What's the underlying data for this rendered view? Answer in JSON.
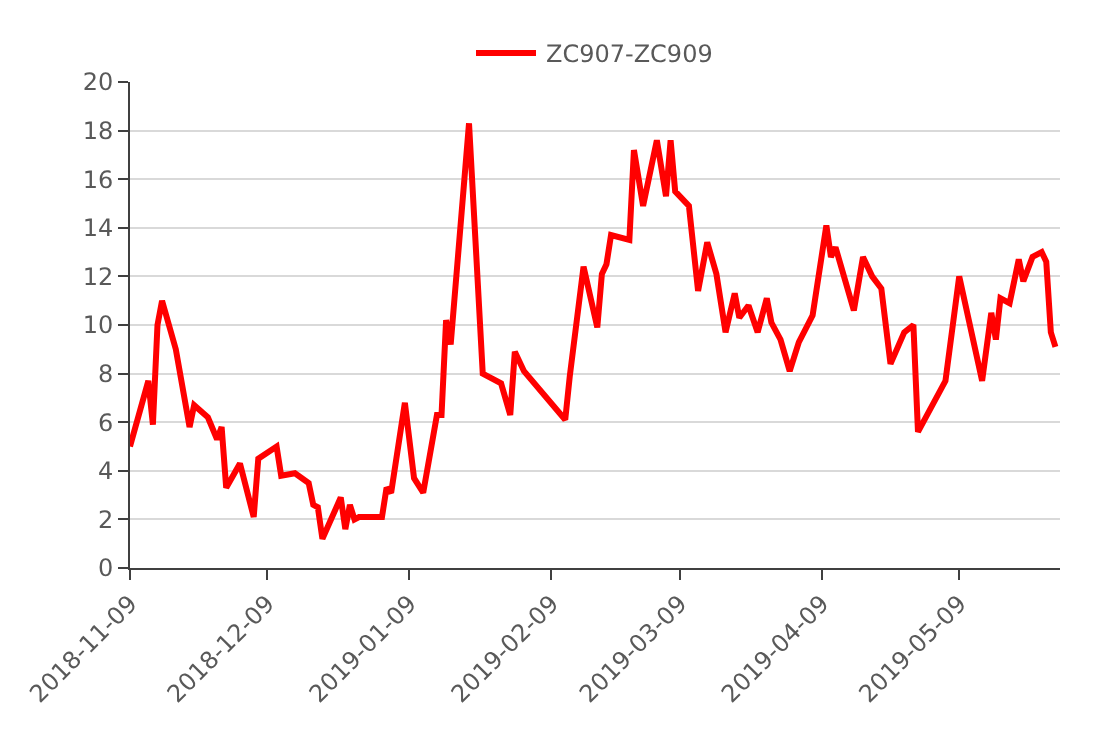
{
  "chart_data": {
    "type": "line",
    "x": [
      "2018-11-09",
      "2018-11-13",
      "2018-11-14",
      "2018-11-15",
      "2018-11-16",
      "2018-11-19",
      "2018-11-22",
      "2018-11-23",
      "2018-11-26",
      "2018-11-28",
      "2018-11-29",
      "2018-11-30",
      "2018-12-03",
      "2018-12-06",
      "2018-12-07",
      "2018-12-11",
      "2018-12-12",
      "2018-12-15",
      "2018-12-18",
      "2018-12-19",
      "2018-12-20",
      "2018-12-21",
      "2018-12-25",
      "2018-12-26",
      "2018-12-27",
      "2018-12-28",
      "2018-12-29",
      "2019-01-03",
      "2019-01-04",
      "2019-01-05",
      "2019-01-08",
      "2019-01-10",
      "2019-01-12",
      "2019-01-15",
      "2019-01-16",
      "2019-01-17",
      "2019-01-18",
      "2019-01-22",
      "2019-01-25",
      "2019-01-29",
      "2019-01-31",
      "2019-02-01",
      "2019-02-03",
      "2019-02-12",
      "2019-02-13",
      "2019-02-16",
      "2019-02-19",
      "2019-02-20",
      "2019-02-21",
      "2019-02-22",
      "2019-02-26",
      "2019-02-27",
      "2019-03-01",
      "2019-03-04",
      "2019-03-06",
      "2019-03-07",
      "2019-03-08",
      "2019-03-11",
      "2019-03-13",
      "2019-03-15",
      "2019-03-17",
      "2019-03-19",
      "2019-03-21",
      "2019-03-22",
      "2019-03-24",
      "2019-03-26",
      "2019-03-28",
      "2019-03-29",
      "2019-03-31",
      "2019-04-02",
      "2019-04-04",
      "2019-04-07",
      "2019-04-10",
      "2019-04-11",
      "2019-04-12",
      "2019-04-16",
      "2019-04-18",
      "2019-04-20",
      "2019-04-22",
      "2019-04-24",
      "2019-04-27",
      "2019-04-29",
      "2019-04-30",
      "2019-05-06",
      "2019-05-09",
      "2019-05-14",
      "2019-05-16",
      "2019-05-17",
      "2019-05-18",
      "2019-05-20",
      "2019-05-22",
      "2019-05-23",
      "2019-05-25",
      "2019-05-27",
      "2019-05-28",
      "2019-05-29",
      "2019-05-30"
    ],
    "series": [
      {
        "name": "ZC907-ZC909",
        "color": "#ff0000",
        "values": [
          5.0,
          7.7,
          5.9,
          10.0,
          11.0,
          9.0,
          5.8,
          6.7,
          6.2,
          5.3,
          5.8,
          3.3,
          4.3,
          2.1,
          4.5,
          5.0,
          3.8,
          3.9,
          3.5,
          2.6,
          2.5,
          1.2,
          2.9,
          1.6,
          2.6,
          2.0,
          2.1,
          2.1,
          3.3,
          3.1,
          6.8,
          3.7,
          3.1,
          6.3,
          6.3,
          10.2,
          9.2,
          18.3,
          8.0,
          7.6,
          6.3,
          8.9,
          8.1,
          6.1,
          7.9,
          12.4,
          9.9,
          12.1,
          12.5,
          13.7,
          13.5,
          17.2,
          14.9,
          17.6,
          15.3,
          17.6,
          15.5,
          14.9,
          11.4,
          13.4,
          12.1,
          9.7,
          11.3,
          10.3,
          10.8,
          9.7,
          11.1,
          10.1,
          9.4,
          8.1,
          9.3,
          10.4,
          14.1,
          12.8,
          13.2,
          10.6,
          12.8,
          12.0,
          11.5,
          8.4,
          9.7,
          10.0,
          5.6,
          7.7,
          12.0,
          7.7,
          10.5,
          9.4,
          11.1,
          10.9,
          12.7,
          11.8,
          12.8,
          13.0,
          12.6,
          9.7,
          9.1
        ]
      }
    ],
    "xlim": [
      "2018-11-09",
      "2019-05-31"
    ],
    "xticks": [
      {
        "value": "2018-11-09",
        "label": "2018-11-09"
      },
      {
        "value": "2018-12-09",
        "label": "2018-12-09"
      },
      {
        "value": "2019-01-09",
        "label": "2019-01-09"
      },
      {
        "value": "2019-02-09",
        "label": "2019-02-09"
      },
      {
        "value": "2019-03-09",
        "label": "2019-03-09"
      },
      {
        "value": "2019-04-09",
        "label": "2019-04-09"
      },
      {
        "value": "2019-05-09",
        "label": "2019-05-09"
      }
    ],
    "ylim": [
      0,
      20
    ],
    "yticks": [
      0,
      2,
      4,
      6,
      8,
      10,
      12,
      14,
      16,
      18,
      20
    ],
    "grid": "y",
    "legend": "top",
    "marker": "none",
    "line_style": "solid"
  }
}
